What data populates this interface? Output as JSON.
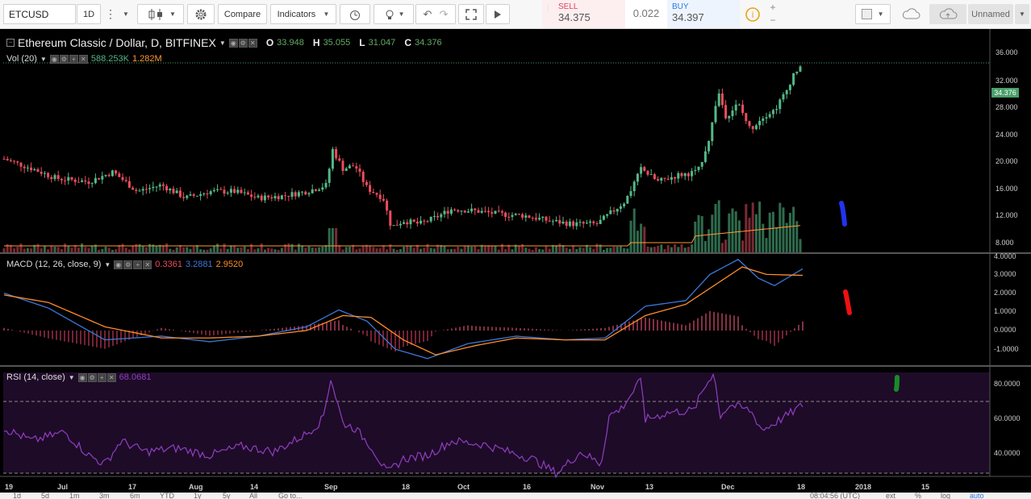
{
  "toolbar": {
    "symbol": "ETCUSD",
    "interval": "1D",
    "compare_label": "Compare",
    "indicators_label": "Indicators",
    "sell_label": "SELL",
    "sell_price": "34.375",
    "spread": "0.022",
    "buy_label": "BUY",
    "buy_price": "34.397",
    "layout_name": "Unnamed"
  },
  "main_legend": {
    "title": "Ethereum Classic / Dollar, D, BITFINEX",
    "o_label": "O",
    "o_value": "33.948",
    "h_label": "H",
    "h_value": "35.055",
    "l_label": "L",
    "l_value": "31.047",
    "c_label": "C",
    "c_value": "34.376"
  },
  "vol_legend": {
    "name": "Vol (20)",
    "v1": "588.253K",
    "v2": "1.282M"
  },
  "macd_legend": {
    "name": "MACD (12, 26, close, 9)",
    "hist": "0.3361",
    "macd": "3.2881",
    "signal": "2.9520"
  },
  "rsi_legend": {
    "name": "RSI (14, close)",
    "value": "68.0681"
  },
  "price_axis": [
    "36.000",
    "32.000",
    "28.000",
    "24.000",
    "20.000",
    "16.000",
    "12.000",
    "8.000"
  ],
  "last_price": "34.376",
  "macd_axis": [
    "4.0000",
    "3.0000",
    "2.0000",
    "1.0000",
    "0.0000",
    "-1.0000"
  ],
  "rsi_axis": [
    "80.0000",
    "60.0000",
    "40.0000"
  ],
  "time_axis": [
    "19",
    "Jul",
    "17",
    "Aug",
    "14",
    "Sep",
    "18",
    "Oct",
    "16",
    "Nov",
    "13",
    "Dec",
    "18",
    "2018",
    "15"
  ],
  "bottom": {
    "ranges": [
      "1d",
      "5d",
      "1m",
      "3m",
      "6m",
      "YTD",
      "1y",
      "5y",
      "All"
    ],
    "goto": "Go to...",
    "clock": "08:04:56 (UTC)",
    "ext": "ext",
    "pct": "%",
    "log": "log",
    "auto": "auto"
  },
  "colors": {
    "up": "#53b987",
    "down": "#eb4d5c",
    "macd_line": "#3c78d8",
    "signal_line": "#ff8c2a",
    "rsi_line": "#8e3fbf",
    "rsi_band": "#1e0b28",
    "vol_ma": "#ff9933"
  },
  "chart_data": {
    "type": "candlestick",
    "x_range": [
      "Jun 2017",
      "Jan 2018"
    ],
    "y_range": [
      8,
      37
    ],
    "last": 34.376
  }
}
